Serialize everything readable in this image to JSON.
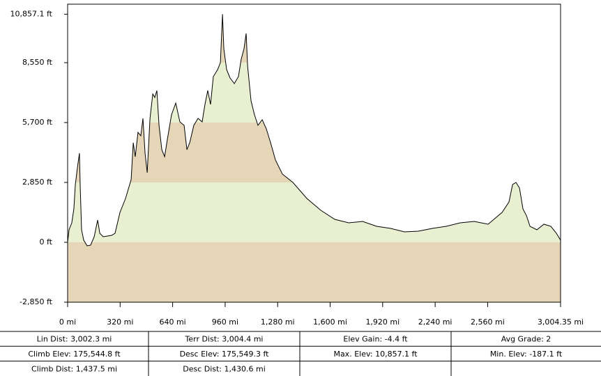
{
  "chart_data": {
    "type": "area",
    "x": [
      0,
      8.5,
      25.5,
      38,
      47,
      60,
      72,
      77,
      85,
      98,
      119,
      140,
      162,
      183,
      196,
      217,
      268,
      289,
      319,
      353,
      387,
      400,
      412,
      429,
      446,
      459,
      472,
      485,
      502,
      519,
      531,
      544,
      557,
      574,
      591,
      608,
      633,
      659,
      684,
      710,
      727,
      744,
      769,
      795,
      820,
      837,
      854,
      871,
      888,
      914,
      931,
      944,
      952,
      969,
      990,
      1016,
      1041,
      1058,
      1075,
      1088,
      1097,
      1118,
      1139,
      1160,
      1186,
      1211,
      1237,
      1267,
      1309,
      1373,
      1458,
      1543,
      1628,
      1713,
      1798,
      1883,
      1968,
      2053,
      2138,
      2223,
      2308,
      2393,
      2478,
      2563,
      2648,
      2690,
      2712,
      2733,
      2754,
      2775,
      2797,
      2818,
      2860,
      2903,
      2945,
      2979,
      3004.35
    ],
    "values": [
      0,
      597,
      928,
      1591,
      2751,
      3579,
      4242,
      2585,
      597,
      99,
      -166,
      -133,
      265,
      1060,
      431,
      265,
      331,
      431,
      1425,
      2088,
      2983,
      4739,
      4076,
      5236,
      5070,
      5899,
      4242,
      3314,
      5899,
      7059,
      6893,
      7225,
      5568,
      4408,
      4076,
      4905,
      6065,
      6628,
      5733,
      5568,
      4408,
      4739,
      5568,
      5899,
      5733,
      6562,
      7225,
      6562,
      7887,
      8219,
      8550,
      10857.1,
      9213,
      8219,
      7821,
      7556,
      7887,
      8716,
      9213,
      9942,
      8384,
      6727,
      6065,
      5568,
      5833,
      5402,
      4739,
      3911,
      3248,
      2850,
      2088,
      1524,
      1094,
      928,
      994,
      762,
      663,
      497,
      530,
      663,
      762,
      928,
      994,
      862,
      1425,
      1922,
      2751,
      2850,
      2585,
      1591,
      1259,
      762,
      597,
      862,
      762,
      431,
      99
    ],
    "color": "#000000",
    "band_colors": [
      "#e6d6b8",
      "#e9f0d1"
    ],
    "xlim": [
      0,
      3004.35
    ],
    "ylim": [
      -2850,
      11334
    ],
    "xticks": [
      {
        "value": 0,
        "label": "0 mi"
      },
      {
        "value": 320,
        "label": "320 mi"
      },
      {
        "value": 640,
        "label": "640 mi"
      },
      {
        "value": 960,
        "label": "960 mi"
      },
      {
        "value": 1280,
        "label": "1,280 mi"
      },
      {
        "value": 1600,
        "label": "1,600 mi"
      },
      {
        "value": 1920,
        "label": "1,920 mi"
      },
      {
        "value": 2240,
        "label": "2,240 mi"
      },
      {
        "value": 2560,
        "label": "2,560 mi"
      },
      {
        "value": 3004.35,
        "label": "3,004.35 mi"
      }
    ],
    "yticks": [
      {
        "value": -2850,
        "label": "-2,850 ft"
      },
      {
        "value": 0,
        "label": "0 ft"
      },
      {
        "value": 2850,
        "label": "2,850 ft"
      },
      {
        "value": 5700,
        "label": "5,700 ft"
      },
      {
        "value": 8550,
        "label": "8,550 ft"
      },
      {
        "value": 10857.1,
        "label": "10,857.1 ft"
      }
    ]
  },
  "table": {
    "rows": [
      [
        "Lin Dist:  3,002.3 mi",
        "Terr Dist:  3,004.4 mi",
        "Elev Gain:  -4.4 ft",
        "Avg Grade:  2"
      ],
      [
        "Climb Elev:  175,544.8 ft",
        "Desc Elev:  175,549.3 ft",
        "Max. Elev:  10,857.1 ft",
        "Min. Elev:  -187.1 ft"
      ],
      [
        "Climb Dist:  1,437.5 mi",
        "Desc Dist:  1,430.6 mi"
      ]
    ]
  }
}
